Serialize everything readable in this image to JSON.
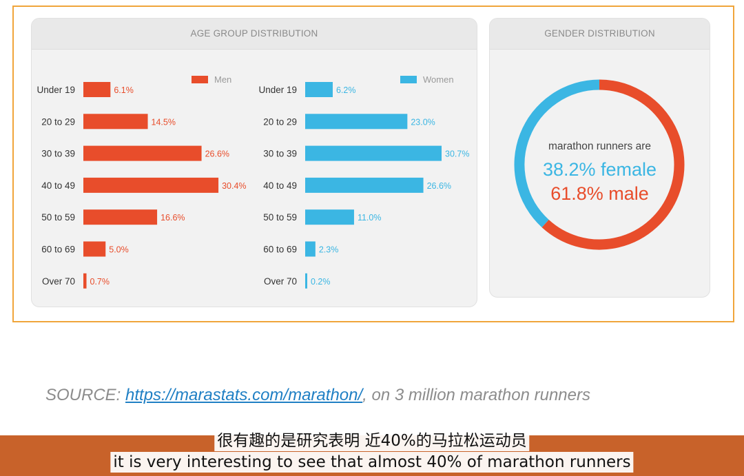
{
  "colors": {
    "men": "#e84d2b",
    "women": "#3bb6e3",
    "frame": "#f0a53a",
    "band": "#c8622a"
  },
  "chart_data": [
    {
      "type": "bar",
      "title": "AGE GROUP DISTRIBUTION",
      "orientation": "horizontal",
      "categories": [
        "Under 19",
        "20 to 29",
        "30 to 39",
        "40 to 49",
        "50 to 59",
        "60 to 69",
        "Over 70"
      ],
      "series": [
        {
          "name": "Men",
          "values": [
            6.1,
            14.5,
            26.6,
            30.4,
            16.6,
            5.0,
            0.7
          ],
          "labels": [
            "6.1%",
            "14.5%",
            "26.6%",
            "30.4%",
            "16.6%",
            "5.0%",
            "0.7%"
          ]
        },
        {
          "name": "Women",
          "values": [
            6.2,
            23.0,
            30.7,
            26.6,
            11.0,
            2.3,
            0.2
          ],
          "labels": [
            "6.2%",
            "23.0%",
            "30.7%",
            "26.6%",
            "11.0%",
            "2.3%",
            "0.2%"
          ]
        }
      ]
    },
    {
      "type": "pie",
      "title": "GENDER DISTRIBUTION",
      "donut": true,
      "categories": [
        "female",
        "male"
      ],
      "values": [
        38.2,
        61.8
      ],
      "center_text": {
        "line1": "marathon runners are",
        "line2": "38.2% female",
        "line3": "61.8% male"
      }
    }
  ],
  "source": {
    "prefix": "SOURCE: ",
    "link": "https://marastats.com/marathon/",
    "suffix": ", on 3 million marathon runners"
  },
  "subtitles": {
    "chinese": "很有趣的是研究表明 近40%的马拉松运动员",
    "english": "it is very interesting to see that almost 40% of marathon runners"
  }
}
